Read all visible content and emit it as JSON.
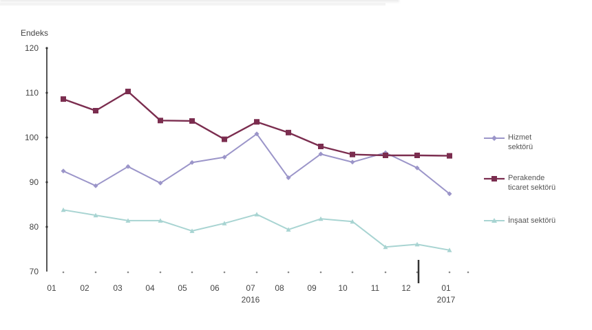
{
  "chart_data": {
    "type": "line",
    "title": "",
    "ylabel": "Endeks",
    "xlabel": "",
    "ylim": [
      70,
      120
    ],
    "yticks": [
      70,
      80,
      90,
      100,
      110,
      120
    ],
    "categories": [
      "01",
      "02",
      "03",
      "04",
      "05",
      "06",
      "07",
      "08",
      "09",
      "10",
      "11",
      "12",
      "01"
    ],
    "year_labels": [
      {
        "index": 6,
        "label": "2016"
      },
      {
        "index": 12,
        "label": "2017"
      }
    ],
    "grid": false,
    "legend_position": "right",
    "series": [
      {
        "name": "Hizmet sektörü",
        "color": "#9b95c9",
        "marker": "diamond",
        "values": [
          92.5,
          89.2,
          93.5,
          89.8,
          94.4,
          95.6,
          100.8,
          91.0,
          96.3,
          94.5,
          96.6,
          93.2,
          87.4
        ]
      },
      {
        "name": "Perakende ticaret sektörü",
        "color": "#7b2d4f",
        "marker": "square",
        "values": [
          108.6,
          106.0,
          110.3,
          103.8,
          103.7,
          99.6,
          103.5,
          101.1,
          98.0,
          96.2,
          96.0,
          96.0,
          95.9
        ]
      },
      {
        "name": "İnşaat sektörü",
        "color": "#a8d4d2",
        "marker": "triangle",
        "values": [
          83.8,
          82.6,
          81.4,
          81.4,
          79.1,
          80.8,
          82.8,
          79.4,
          81.8,
          81.2,
          75.5,
          76.1,
          74.8
        ]
      }
    ]
  },
  "axis": {
    "unit_label": "Endeks",
    "y_labels": [
      "120",
      "110",
      "100",
      "90",
      "80",
      "70"
    ],
    "x_labels": [
      "01",
      "02",
      "03",
      "04",
      "05",
      "06",
      "07",
      "08",
      "09",
      "10",
      "11",
      "12",
      "01"
    ],
    "year_2016": "2016",
    "year_2017": "2017"
  },
  "legend": {
    "hizmet_line1": "Hizmet",
    "hizmet_line2": "sektörü",
    "perakende_line1": "Perakende",
    "perakende_line2": "ticaret sektörü",
    "insaat_line1": "İnşaat sektörü"
  }
}
